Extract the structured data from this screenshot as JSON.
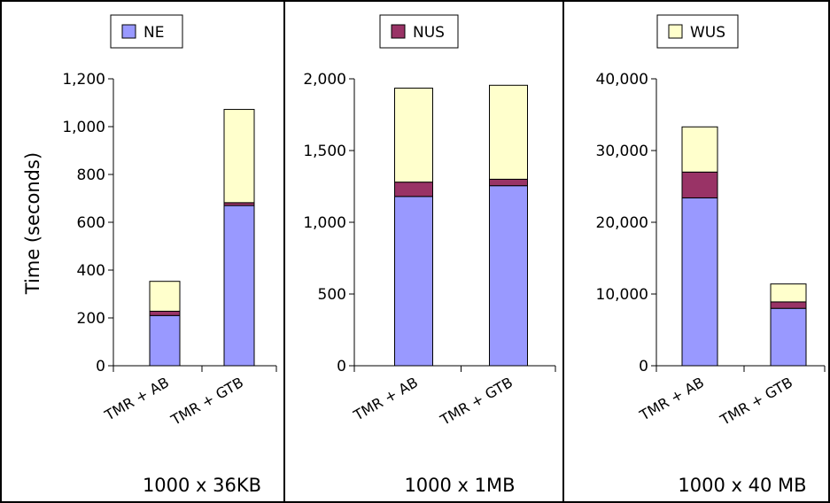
{
  "ylabel": "Time (seconds)",
  "series_colors": {
    "NE": "#9999ff",
    "NUS": "#993366",
    "WUS": "#ffffcc"
  },
  "chart_data": [
    {
      "type": "bar",
      "stacked": true,
      "subtitle": "1000 x 36KB",
      "legend": {
        "name": "NE",
        "color": "#9999ff"
      },
      "categories": [
        "TMR + AB",
        "TMR + GTB"
      ],
      "ylim": [
        0,
        1200
      ],
      "yticks": [
        0,
        200,
        400,
        600,
        800,
        1000,
        1200
      ],
      "ytick_labels": [
        "0",
        "200",
        "400",
        "600",
        "800",
        "1,000",
        "1,200"
      ],
      "series": [
        {
          "name": "NE",
          "values": [
            210,
            670
          ]
        },
        {
          "name": "NUS",
          "values": [
            18,
            12
          ]
        },
        {
          "name": "WUS",
          "values": [
            125,
            390
          ]
        }
      ]
    },
    {
      "type": "bar",
      "stacked": true,
      "subtitle": "1000 x 1MB",
      "legend": {
        "name": "NUS",
        "color": "#993366"
      },
      "categories": [
        "TMR + AB",
        "TMR + GTB"
      ],
      "ylim": [
        0,
        2000
      ],
      "yticks": [
        0,
        500,
        1000,
        1500,
        2000
      ],
      "ytick_labels": [
        "0",
        "500",
        "1,000",
        "1,500",
        "2,000"
      ],
      "series": [
        {
          "name": "NE",
          "values": [
            1180,
            1255
          ]
        },
        {
          "name": "NUS",
          "values": [
            100,
            45
          ]
        },
        {
          "name": "WUS",
          "values": [
            655,
            655
          ]
        }
      ]
    },
    {
      "type": "bar",
      "stacked": true,
      "subtitle": "1000 x 40 MB",
      "legend": {
        "name": "WUS",
        "color": "#ffffcc"
      },
      "categories": [
        "TMR +  AB",
        "TMR + GTB"
      ],
      "ylim": [
        0,
        40000
      ],
      "yticks": [
        0,
        10000,
        20000,
        30000,
        40000
      ],
      "ytick_labels": [
        "0",
        "10,000",
        "20,000",
        "30,000",
        "40,000"
      ],
      "series": [
        {
          "name": "NE",
          "values": [
            23400,
            8000
          ]
        },
        {
          "name": "NUS",
          "values": [
            3600,
            900
          ]
        },
        {
          "name": "WUS",
          "values": [
            6300,
            2500
          ]
        }
      ]
    }
  ]
}
